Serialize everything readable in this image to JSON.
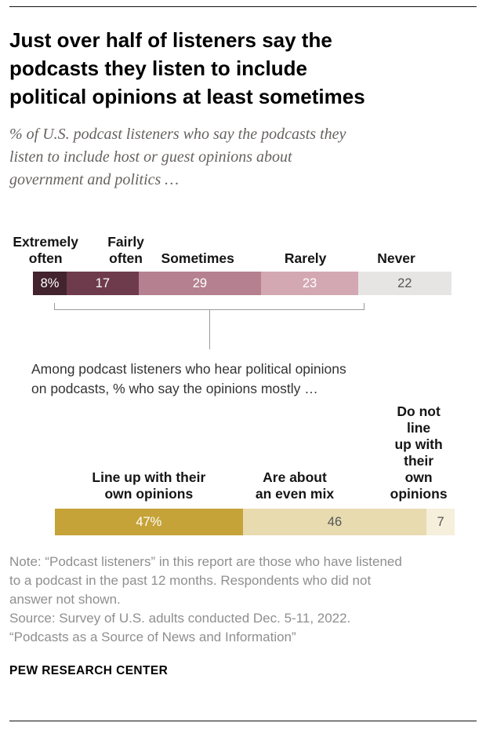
{
  "header": {
    "title_lines": [
      "Just over half of listeners say the",
      "podcasts they listen to include",
      "political opinions at least sometimes"
    ],
    "subtitle_lines": [
      "% of U.S. podcast listeners who say the podcasts they",
      "listen to include host or guest opinions about",
      "government and politics …"
    ]
  },
  "connector": {
    "lines": [
      "Among podcast listeners who hear political opinions",
      "on podcasts, % who say the opinions mostly …"
    ]
  },
  "chart_data": [
    {
      "type": "bar",
      "stacked": true,
      "orientation": "horizontal",
      "description": "% of U.S. podcast listeners who say the podcasts they listen to include host or guest opinions about government and politics",
      "categories": [
        "Extremely\noften",
        "Fairly\noften",
        "Sometimes",
        "Rarely",
        "Never"
      ],
      "values": [
        8,
        17,
        29,
        23,
        22
      ],
      "value_labels": [
        "8%",
        "17",
        "29",
        "23",
        "22"
      ],
      "segment_colors": [
        "#42232e",
        "#6e3b4c",
        "#b5808f",
        "#d3a8b3",
        "#e7e5e3"
      ],
      "value_label_colors": [
        "#ffffff",
        "#ffffff",
        "#ffffff",
        "#ffffff",
        "#565656"
      ],
      "label_centers_pct": [
        3,
        22,
        39,
        64.5,
        86
      ],
      "xlim": [
        0,
        100
      ],
      "unit": "%"
    },
    {
      "type": "bar",
      "stacked": true,
      "orientation": "horizontal",
      "description": "Among podcast listeners who hear political opinions on podcasts, % who say the opinions mostly …",
      "categories": [
        "Line up with their\nown opinions",
        "Are about\nan even mix",
        "Do not line\nup with their\nown opinions"
      ],
      "values": [
        47,
        46,
        7
      ],
      "value_labels": [
        "47%",
        "46",
        "7"
      ],
      "segment_colors": [
        "#c6a338",
        "#e8dbb0",
        "#f5efdb"
      ],
      "value_label_colors": [
        "#ffffff",
        "#565656",
        "#565656"
      ],
      "label_centers_pct": [
        23.5,
        60,
        91
      ],
      "xlim": [
        0,
        100
      ],
      "unit": "%"
    }
  ],
  "footnotes": {
    "note_lines": [
      "Note: “Podcast listeners” in this report are those who have listened",
      "to a podcast in the past 12 months. Respondents who did not",
      "answer not shown."
    ],
    "source_line": "Source: Survey of U.S. adults conducted Dec. 5-11, 2022.",
    "report_line": "“Podcasts as a Source of News and Information”",
    "brand": "PEW RESEARCH CENTER"
  }
}
